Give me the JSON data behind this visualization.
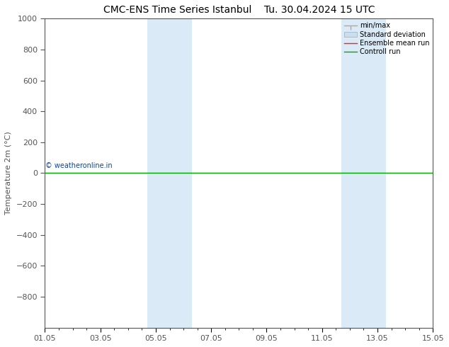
{
  "title_left": "CMC-ENS Time Series Istanbul",
  "title_right": "Tu. 30.04.2024 15 UTC",
  "ylabel": "Temperature 2m (°C)",
  "ylim_top": -1000,
  "ylim_bottom": 1000,
  "yticks": [
    -800,
    -600,
    -400,
    -200,
    0,
    200,
    400,
    600,
    800,
    1000
  ],
  "xtick_labels": [
    "01.05",
    "03.05",
    "05.05",
    "07.05",
    "09.05",
    "11.05",
    "13.05",
    "15.05"
  ],
  "xtick_positions": [
    0,
    2,
    4,
    6,
    8,
    10,
    12,
    14
  ],
  "xlim": [
    0,
    14
  ],
  "shaded_regions": [
    {
      "xmin": 3.7,
      "xmax": 5.3
    },
    {
      "xmin": 10.7,
      "xmax": 12.3
    }
  ],
  "shaded_color": "#daeaf7",
  "green_line_y": 0,
  "red_line_y": 0,
  "watermark": "© weatheronline.in",
  "watermark_color": "#0044bb",
  "watermark_xdata": 0.02,
  "watermark_ydata": 50,
  "background_color": "#ffffff",
  "spine_color": "#555555",
  "tick_color": "#555555",
  "title_fontsize": 10,
  "axis_label_fontsize": 8,
  "tick_fontsize": 8,
  "legend_fontsize": 7,
  "minmax_color": "#aaaaaa",
  "stddev_color": "#c8dff0",
  "ensemble_color": "#ff2020",
  "control_color": "#00aa00"
}
